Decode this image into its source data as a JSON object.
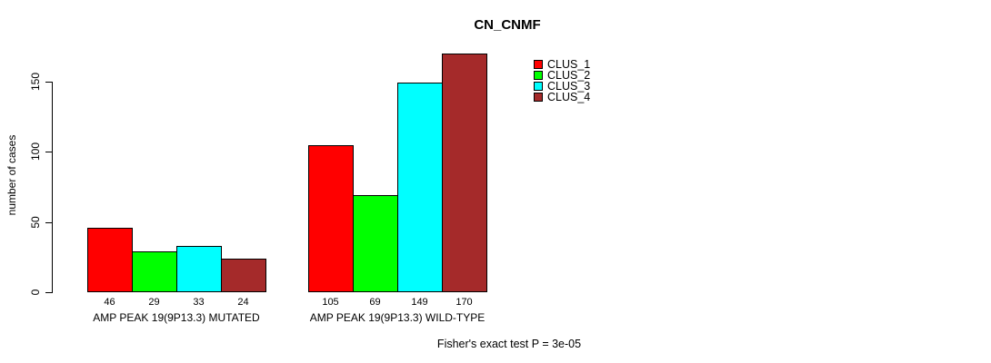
{
  "chart_data": {
    "type": "bar",
    "title": "CN_CNMF",
    "ylabel": "number of cases",
    "xlabel": "",
    "ylim": [
      0,
      170
    ],
    "yticks": [
      0,
      50,
      100,
      150
    ],
    "grid": false,
    "legend_position": "top-right",
    "categories": [
      "AMP PEAK 19(9P13.3) MUTATED",
      "AMP PEAK 19(9P13.3) WILD-TYPE"
    ],
    "series": [
      {
        "name": "CLUS_1",
        "color": "#FF0000",
        "values": [
          46,
          105
        ]
      },
      {
        "name": "CLUS_2",
        "color": "#00FF00",
        "values": [
          29,
          69
        ]
      },
      {
        "name": "CLUS_3",
        "color": "#00FFFF",
        "values": [
          33,
          149
        ]
      },
      {
        "name": "CLUS_4",
        "color": "#A52A2A",
        "values": [
          24,
          170
        ]
      }
    ],
    "bar_value_labels": [
      [
        "46",
        "29",
        "33",
        "24"
      ],
      [
        "105",
        "69",
        "149",
        "170"
      ]
    ],
    "annotation": "Fisher's exact test P = 3e-05"
  }
}
